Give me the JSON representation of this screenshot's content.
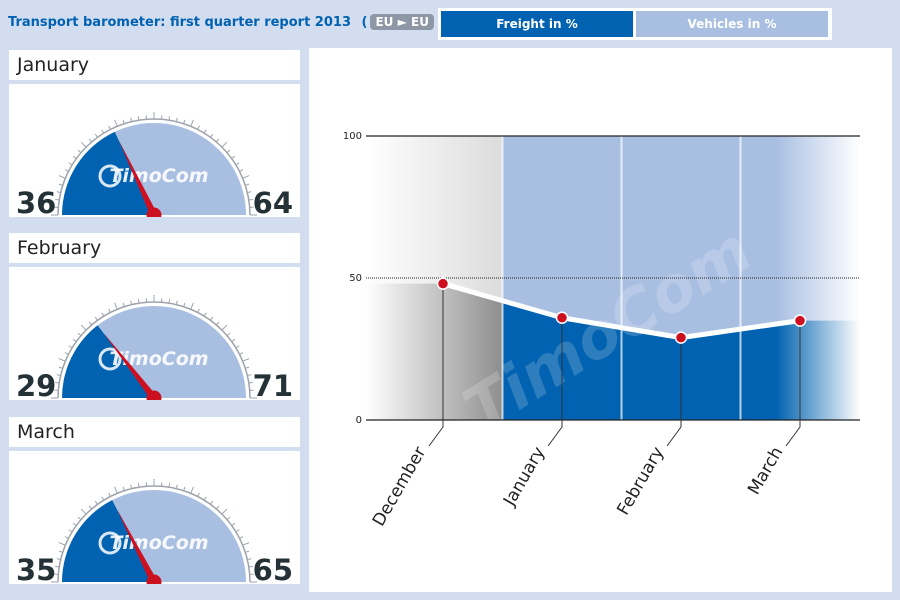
{
  "header": {
    "title": "Transport barometer: first quarter report 2013",
    "route_from": "EU",
    "route_arrow": "►",
    "route_to": "EU"
  },
  "tabs": [
    {
      "label": "Freight in %",
      "active": true
    },
    {
      "label": "Vehicles in %",
      "active": false
    }
  ],
  "gauges": [
    {
      "month": "January",
      "freight": "36",
      "vehicles": "64",
      "logo": "TimoCom"
    },
    {
      "month": "February",
      "freight": "29",
      "vehicles": "71",
      "logo": "TimoCom"
    },
    {
      "month": "March",
      "freight": "35",
      "vehicles": "65",
      "logo": "TimoCom"
    }
  ],
  "colors": {
    "freight": "#0062b0",
    "vehicles": "#a9bfe2",
    "needle": "#cc1020",
    "background": "#d3ddf0"
  },
  "chart_data": {
    "type": "line",
    "categories": [
      "December",
      "January",
      "February",
      "March"
    ],
    "values": [
      48,
      36,
      29,
      35
    ],
    "ylim": [
      0,
      100
    ],
    "yticks": [
      "0",
      "50",
      "100"
    ],
    "watermark": "TimoCom"
  }
}
